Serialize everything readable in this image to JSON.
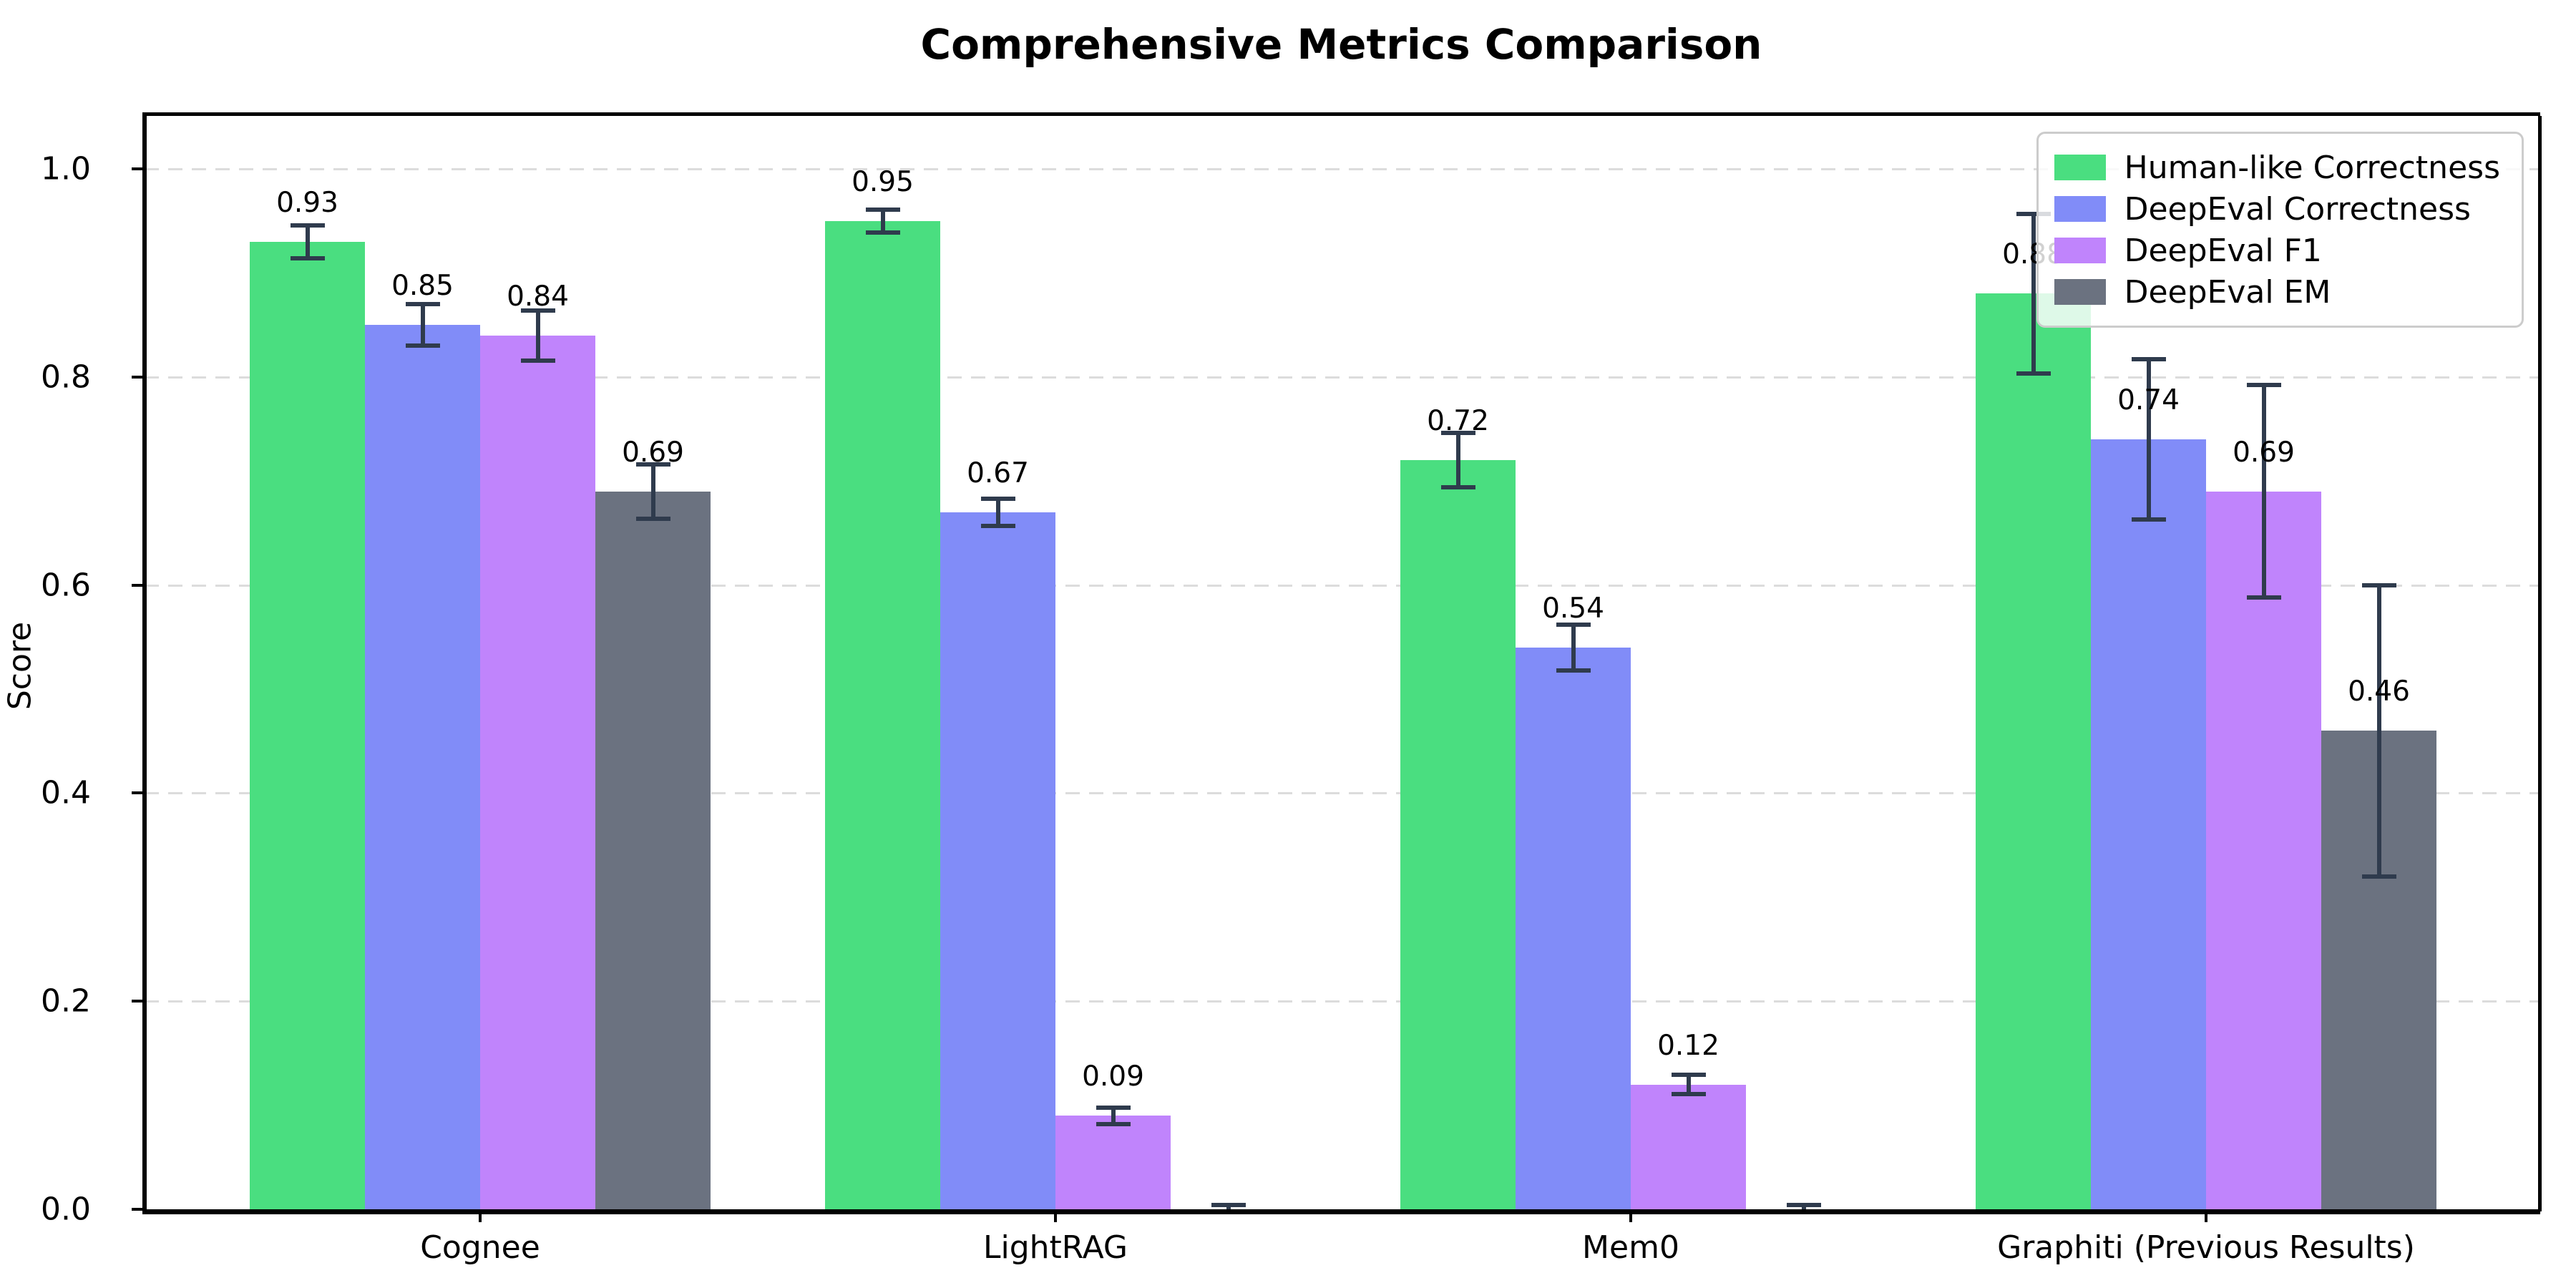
{
  "chart_data": {
    "type": "bar",
    "title": "Comprehensive Metrics Comparison",
    "xlabel": "",
    "ylabel": "Score",
    "categories": [
      "Cognee",
      "LightRAG",
      "Mem0",
      "Graphiti (Previous Results)"
    ],
    "series": [
      {
        "name": "Human-like Correctness",
        "color": "#4ade80",
        "values": [
          0.93,
          0.95,
          0.72,
          0.88
        ],
        "errors": [
          0.016,
          0.011,
          0.026,
          0.077
        ],
        "value_labels": [
          "0.93",
          "0.95",
          "0.72",
          "0.88"
        ]
      },
      {
        "name": "DeepEval Correctness",
        "color": "#818cf8",
        "values": [
          0.85,
          0.67,
          0.54,
          0.74
        ],
        "errors": [
          0.02,
          0.013,
          0.022,
          0.077
        ],
        "value_labels": [
          "0.85",
          "0.67",
          "0.54",
          "0.74"
        ]
      },
      {
        "name": "DeepEval F1",
        "color": "#c084fc",
        "values": [
          0.84,
          0.09,
          0.12,
          0.69
        ],
        "errors": [
          0.024,
          0.008,
          0.009,
          0.102
        ],
        "value_labels": [
          "0.84",
          "0.09",
          "0.12",
          "0.69"
        ]
      },
      {
        "name": "DeepEval EM",
        "color": "#6b7280",
        "values": [
          0.69,
          0.0,
          0.0,
          0.46
        ],
        "errors": [
          0.026,
          0.004,
          0.004,
          0.14
        ],
        "value_labels": [
          "0.69",
          "",
          "",
          "0.46"
        ]
      }
    ],
    "yticks": [
      "0.0",
      "0.2",
      "0.4",
      "0.6",
      "0.8",
      "1.0"
    ],
    "ylim": [
      0,
      1.05
    ],
    "grid": {
      "axis": "y",
      "style": "dashed",
      "color": "#dcdcdc"
    },
    "legend_position": "upper right",
    "error_bar_color": "#2f3b4d",
    "axis_color": "#000000",
    "background_color": "#ffffff"
  }
}
